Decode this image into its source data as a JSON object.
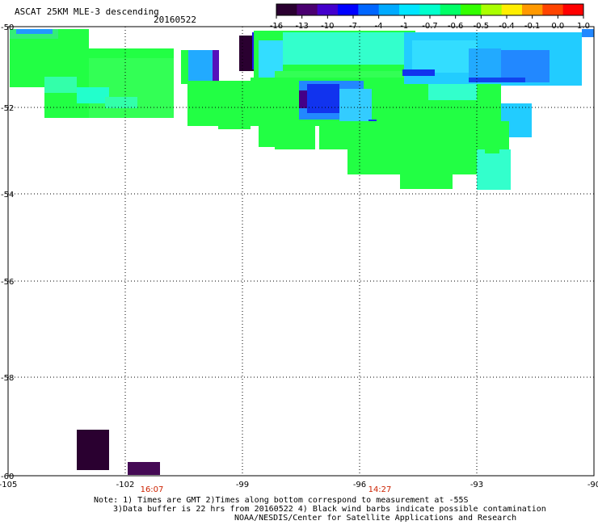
{
  "title": "ASCAT 25KM MLE-3 descending",
  "date": "20160522",
  "colorbar": {
    "labels": [
      "-16",
      "-13",
      "-10",
      "-7",
      "-4",
      "-1",
      "-0.7",
      "-0.6",
      "-0.5",
      "-0.4",
      "-0.1",
      "0.0",
      "1.0"
    ],
    "colors": [
      "#2a0030",
      "#4a0070",
      "#4400cc",
      "#0000ff",
      "#0066ff",
      "#00aaff",
      "#00e5ff",
      "#00ffcc",
      "#00ff66",
      "#33ff00",
      "#aaff00",
      "#ffee00",
      "#ff9900",
      "#ff4400",
      "#ff0000"
    ]
  },
  "axes": {
    "x_ticks": [
      "-105",
      "-102",
      "-99",
      "-96",
      "-93",
      "-90"
    ],
    "y_ticks": [
      "-50",
      "-52",
      "-54",
      "-56",
      "-58",
      "-60"
    ]
  },
  "bottom_times": [
    "16:07",
    "14:27"
  ],
  "notes": {
    "line1": "Note: 1) Times are GMT 2)Times along bottom correspond to measurement at -55S",
    "line2": "3)Data buffer is 22 hrs from 20160522 4) Black wind barbs indicate possible contamination",
    "line3": "NOAA/NESDIS/Center for Satellite Applications and Research"
  }
}
